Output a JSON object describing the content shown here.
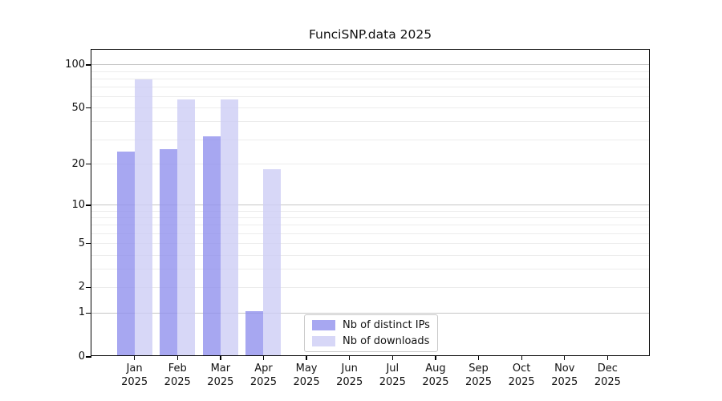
{
  "chart_data": {
    "type": "bar",
    "title": "FunciSNP.data 2025",
    "scale": "log1p",
    "categories": [
      "Jan",
      "Feb",
      "Mar",
      "Apr",
      "May",
      "Jun",
      "Jul",
      "Aug",
      "Sep",
      "Oct",
      "Nov",
      "Dec"
    ],
    "x_tick_year": "2025",
    "series": [
      {
        "name": "Nb of distinct IPs",
        "color": "rgba(145,145,238,0.8)",
        "values": [
          24,
          25,
          31,
          1,
          0,
          0,
          0,
          0,
          0,
          0,
          0,
          0
        ]
      },
      {
        "name": "Nb of downloads",
        "color": "rgba(205,205,245,0.8)",
        "values": [
          77,
          56,
          56,
          18,
          0,
          0,
          0,
          0,
          0,
          0,
          0,
          0
        ]
      }
    ],
    "y_tick_labels": [
      0,
      1,
      2,
      5,
      10,
      20,
      50,
      100
    ],
    "y_major_gridlines": [
      1,
      10,
      100
    ],
    "y_minor_gridlines": [
      2,
      3,
      4,
      5,
      6,
      7,
      8,
      9,
      20,
      30,
      40,
      50,
      60,
      70,
      80,
      90
    ],
    "ylim": [
      0,
      126
    ],
    "grid": "on",
    "legend_position": "lower center"
  },
  "colors": {
    "axis": "#000000",
    "grid_major": "#c6c6c6",
    "grid_minor": "#ececec",
    "legend_border": "#c9c9c9",
    "background": "#ffffff"
  }
}
